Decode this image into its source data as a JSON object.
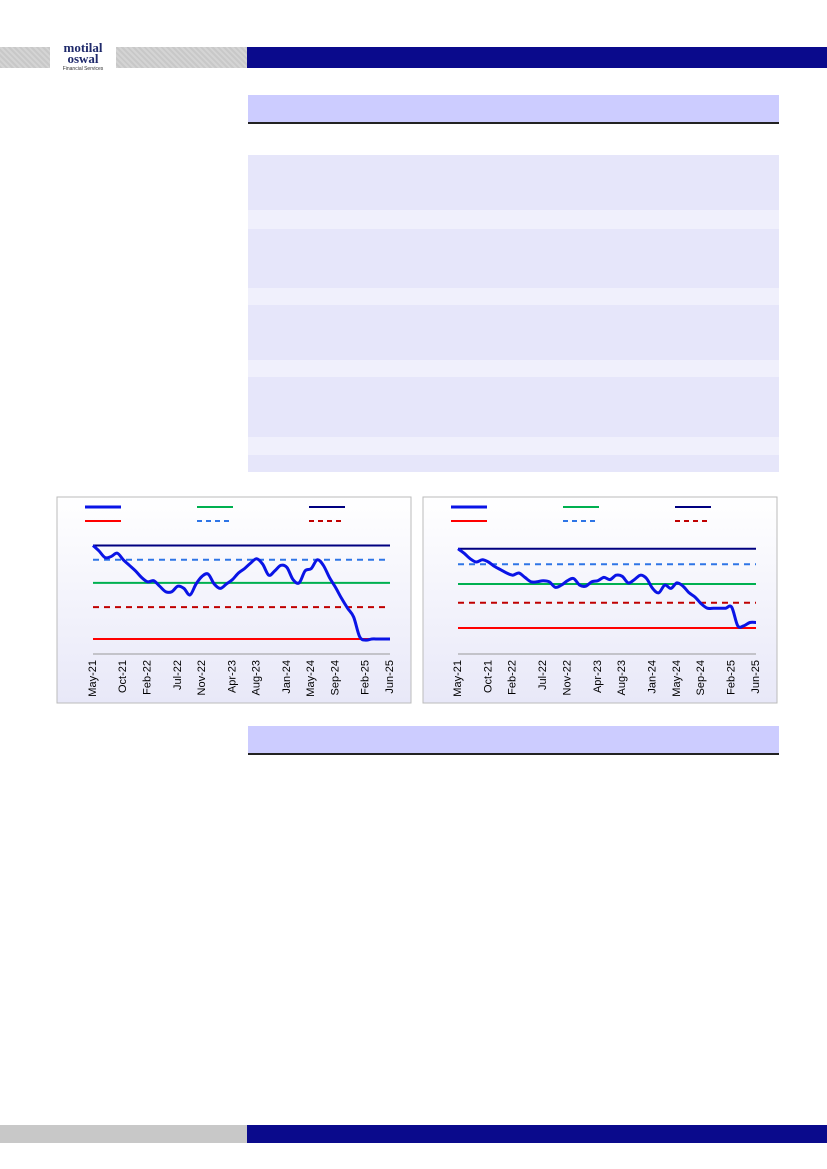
{
  "logo": {
    "line1": "motilal",
    "line2": "oswal",
    "tagline": "Financial Services"
  },
  "chart_data": [
    {
      "type": "line",
      "categories": [
        "May-21",
        null,
        null,
        null,
        null,
        "Oct-21",
        null,
        null,
        null,
        "Feb-22",
        null,
        null,
        null,
        null,
        "Jul-22",
        null,
        null,
        null,
        "Nov-22",
        null,
        null,
        null,
        null,
        "Apr-23",
        null,
        null,
        null,
        "Aug-23",
        null,
        null,
        null,
        null,
        "Jan-24",
        null,
        null,
        null,
        "May-24",
        null,
        null,
        null,
        "Sep-24",
        null,
        null,
        null,
        null,
        "Feb-25",
        null,
        null,
        null,
        "Jun-25"
      ],
      "ylim": [
        0,
        100
      ],
      "series": [
        {
          "color": "#0a14e6",
          "values": [
            95,
            90,
            84,
            85,
            88,
            82,
            77,
            72,
            66,
            62,
            63,
            58,
            53,
            53,
            58,
            56,
            50,
            60,
            67,
            69,
            60,
            56,
            60,
            64,
            70,
            74,
            79,
            83,
            78,
            68,
            72,
            77,
            75,
            64,
            61,
            72,
            74,
            82,
            77,
            66,
            57,
            47,
            38,
            30,
            12,
            9,
            10,
            10,
            10,
            10
          ]
        }
      ],
      "lines": [
        {
          "color": "#00b050",
          "dash": false,
          "value": 61
        },
        {
          "color": "#000080",
          "dash": false,
          "value": 95
        },
        {
          "color": "#ff0000",
          "dash": false,
          "value": 10
        },
        {
          "color": "#2e75e6",
          "dash": true,
          "value": 82
        },
        {
          "color": "#c00000",
          "dash": true,
          "value": 39
        }
      ]
    },
    {
      "type": "line",
      "categories": [
        "May-21",
        null,
        null,
        null,
        null,
        "Oct-21",
        null,
        null,
        null,
        "Feb-22",
        null,
        null,
        null,
        null,
        "Jul-22",
        null,
        null,
        null,
        "Nov-22",
        null,
        null,
        null,
        null,
        "Apr-23",
        null,
        null,
        null,
        "Aug-23",
        null,
        null,
        null,
        null,
        "Jan-24",
        null,
        null,
        null,
        "May-24",
        null,
        null,
        null,
        "Sep-24",
        null,
        null,
        null,
        null,
        "Feb-25",
        null,
        null,
        null,
        "Jun-25"
      ],
      "ylim": [
        0,
        100
      ],
      "series": [
        {
          "color": "#0a14e6",
          "values": [
            92,
            88,
            83,
            80,
            82,
            80,
            76,
            73,
            70,
            68,
            70,
            66,
            62,
            62,
            63,
            62,
            57,
            59,
            63,
            65,
            59,
            58,
            62,
            63,
            66,
            64,
            68,
            67,
            61,
            64,
            68,
            65,
            56,
            52,
            59,
            56,
            61,
            58,
            52,
            48,
            42,
            38,
            38,
            38,
            38,
            39,
            22,
            22,
            25,
            25
          ]
        }
      ],
      "lines": [
        {
          "color": "#00b050",
          "dash": false,
          "value": 60
        },
        {
          "color": "#000080",
          "dash": false,
          "value": 92
        },
        {
          "color": "#ff0000",
          "dash": false,
          "value": 20
        },
        {
          "color": "#2e75e6",
          "dash": true,
          "value": 78
        },
        {
          "color": "#c00000",
          "dash": true,
          "value": 43
        }
      ]
    }
  ]
}
